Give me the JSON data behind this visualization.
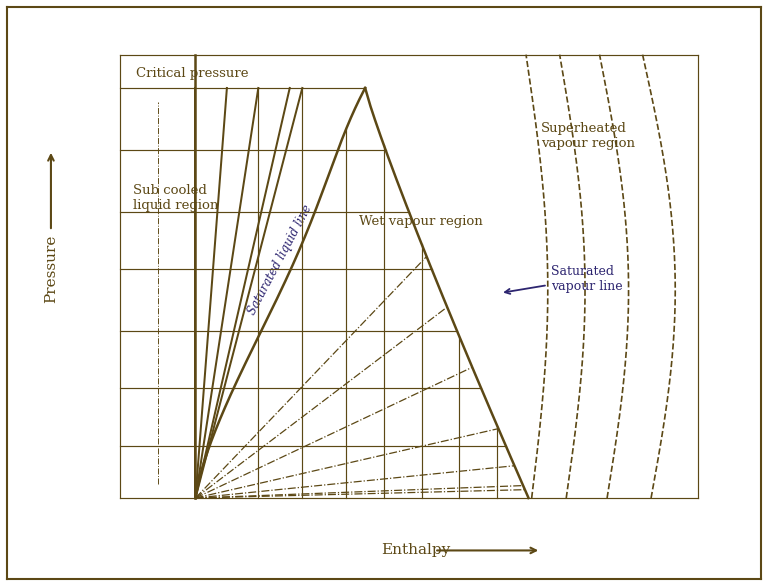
{
  "background_color": "#ffffff",
  "main_color": "#5c4815",
  "purple_color": "#2d2570",
  "figsize": [
    7.68,
    5.86
  ],
  "dpi": 100,
  "label_critical": "Critical pressure",
  "label_subcooled": "Sub cooled\nliquid region",
  "label_wet": "Wet vapour region",
  "label_superheated": "Superheated\nvapour region",
  "label_sat_liquid": "Saturated liquid line",
  "label_sat_vapour": "Saturated\nvapour line",
  "xlabel": "Enthalpy",
  "ylabel": "Pressure"
}
